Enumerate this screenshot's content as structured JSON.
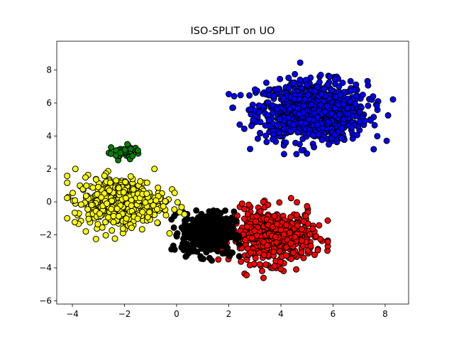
{
  "chart_data": {
    "type": "scatter",
    "title": "ISO-SPLIT on UO",
    "xlabel": "",
    "ylabel": "",
    "xlim": [
      -4.6,
      8.9
    ],
    "ylim": [
      -6.2,
      9.75
    ],
    "x_ticks": [
      -4,
      -2,
      0,
      2,
      4,
      6,
      8
    ],
    "y_ticks": [
      -6,
      -4,
      -2,
      0,
      2,
      4,
      6,
      8
    ],
    "x_tick_labels": [
      "−4",
      "−2",
      "0",
      "2",
      "4",
      "6",
      "8"
    ],
    "y_tick_labels": [
      "−6",
      "−4",
      "−2",
      "0",
      "2",
      "4",
      "6",
      "8"
    ],
    "grid": false,
    "legend": "none",
    "marker_edge_color": "#000000",
    "clusters": [
      {
        "color": "#0000ff",
        "center": [
          5.2,
          5.5
        ],
        "spread": [
          1.05,
          0.9
        ],
        "count": 900,
        "x_range": [
          2.0,
          8.3
        ],
        "y_range": [
          2.9,
          9.0
        ]
      },
      {
        "color": "#ff0000",
        "center": [
          3.7,
          -2.1
        ],
        "spread": [
          0.8,
          0.8
        ],
        "count": 500,
        "x_range": [
          1.6,
          5.8
        ],
        "y_range": [
          -5.4,
          1.0
        ]
      },
      {
        "color": "#000000",
        "center": [
          1.2,
          -1.9
        ],
        "spread": [
          0.5,
          0.65
        ],
        "count": 400,
        "x_range": [
          -0.2,
          2.4
        ],
        "y_range": [
          -4.5,
          0.9
        ]
      },
      {
        "color": "#ffff00",
        "center": [
          -2.2,
          0.0
        ],
        "spread": [
          0.85,
          0.75
        ],
        "count": 450,
        "x_range": [
          -4.2,
          0.3
        ],
        "y_range": [
          -2.4,
          2.0
        ]
      },
      {
        "color": "#008000",
        "center": [
          -2.0,
          3.0
        ],
        "spread": [
          0.3,
          0.22
        ],
        "count": 40,
        "x_range": [
          -2.6,
          -1.0
        ],
        "y_range": [
          2.2,
          3.5
        ]
      }
    ]
  }
}
